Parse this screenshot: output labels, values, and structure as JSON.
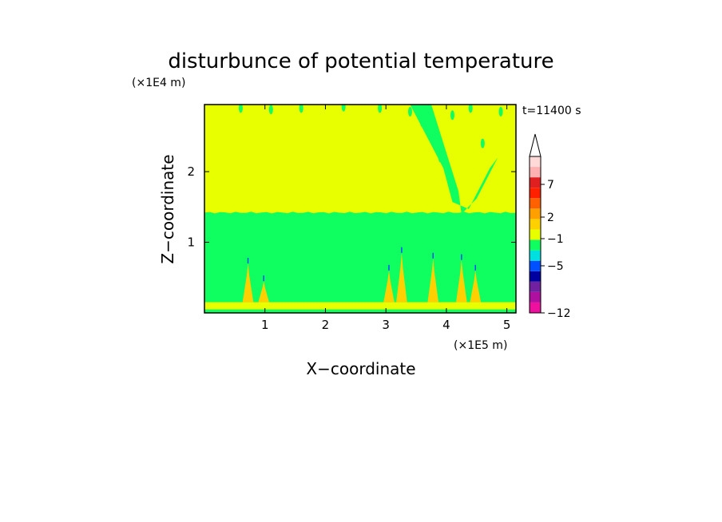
{
  "chart_data": {
    "type": "heatmap",
    "title": "disturbunce of potential temperature",
    "xlabel": "X−coordinate",
    "ylabel": "Z−coordinate",
    "x_unit": "(×1E5 m)",
    "y_unit": "(×1E4 m)",
    "time_label": "t=11400 s",
    "xlim": [
      0,
      5.15
    ],
    "ylim": [
      0,
      2.95
    ],
    "x_ticks": [
      1,
      2,
      3,
      4,
      5
    ],
    "y_ticks": [
      1,
      2
    ],
    "x_tick_labels": [
      "1",
      "2",
      "3",
      "4",
      "5"
    ],
    "y_tick_labels": [
      "1",
      "2"
    ],
    "colorbar": {
      "colors": [
        "#f010a0",
        "#b010a0",
        "#7020a0",
        "#0000a0",
        "#0050ff",
        "#00e0e0",
        "#10ff60",
        "#e8ff00",
        "#ffd000",
        "#ffa000",
        "#ff6000",
        "#ff2000",
        "#e02020",
        "#ffb0b0",
        "#ffd8d8"
      ],
      "tick_labels": [
        "7",
        "2",
        "−1",
        "−5",
        "−12"
      ],
      "extend_top": true
    },
    "field": {
      "background_upper": "#e8ff00",
      "band": "#10ff60",
      "band_z_range": [
        0.15,
        1.42
      ],
      "surface_layer": "#e8ff00",
      "surface_z_range": [
        0.05,
        0.15
      ],
      "plumes_x": [
        0.72,
        0.98,
        3.05,
        3.26,
        3.78,
        4.25,
        4.48
      ],
      "wedge_apex": [
        4.25,
        1.42
      ]
    }
  }
}
